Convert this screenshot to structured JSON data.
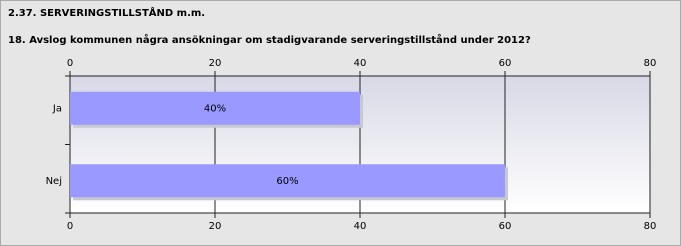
{
  "chart_data": {
    "type": "bar",
    "orientation": "horizontal",
    "title": "2.37. SERVERINGSTILLSTÅND m.m.",
    "subtitle": "18. Avslog kommunen några ansökningar om stadigvarande serveringstillstånd under 2012?",
    "categories": [
      "Ja",
      "Nej"
    ],
    "values": [
      40,
      60
    ],
    "value_labels": [
      "40%",
      "60%"
    ],
    "color": "#9999ff",
    "xlim": [
      0,
      80
    ],
    "xticks": [
      0,
      20,
      40,
      60,
      80
    ],
    "grid": true
  }
}
